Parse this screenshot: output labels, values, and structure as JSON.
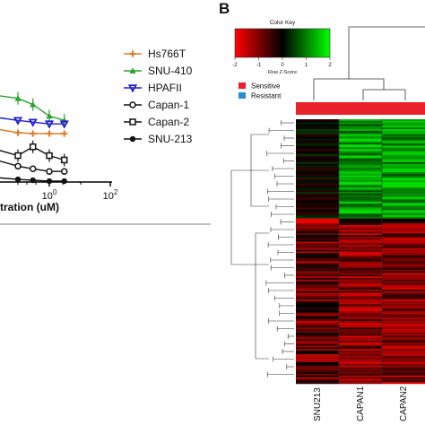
{
  "panel_b_label": "B",
  "chart_data": [
    {
      "type": "line",
      "xlabel": "tration (uM)",
      "xscale": "log",
      "x_tick_labels": [
        "10^0",
        "10^2"
      ],
      "legend_placement": "right",
      "series": [
        {
          "name": "Hs766T",
          "color": "#e07b2a",
          "marker": "plus",
          "x": [
            0.01,
            0.1,
            0.3,
            1,
            3
          ],
          "y": [
            62,
            56,
            55,
            55,
            55
          ]
        },
        {
          "name": "SNU-410",
          "color": "#2ca02c",
          "marker": "triangle-up",
          "x": [
            0.01,
            0.1,
            0.3,
            1,
            3
          ],
          "y": [
            100,
            95,
            88,
            75,
            70
          ]
        },
        {
          "name": "HPAFII",
          "color": "#1f1fd0",
          "marker": "triangle-down",
          "x": [
            0.01,
            0.1,
            0.3,
            1,
            3
          ],
          "y": [
            75,
            70,
            68,
            66,
            66
          ]
        },
        {
          "name": "Capan-1",
          "color": "#111111",
          "marker": "circle-open",
          "x": [
            0.01,
            0.1,
            0.3,
            1,
            3
          ],
          "y": [
            28,
            18,
            15,
            12,
            12
          ]
        },
        {
          "name": "Capan-2",
          "color": "#111111",
          "marker": "square-open",
          "x": [
            0.01,
            0.1,
            0.3,
            1,
            3
          ],
          "y": [
            40,
            30,
            40,
            30,
            25
          ]
        },
        {
          "name": "SNU-213",
          "color": "#111111",
          "marker": "circle-filled",
          "x": [
            0.01,
            0.1,
            0.3,
            1,
            3
          ],
          "y": [
            6,
            3,
            2,
            1,
            1
          ]
        }
      ]
    },
    {
      "type": "heatmap",
      "color_key": {
        "title": "Color Key",
        "label": "Row Z-Score",
        "ticks": [
          "-2",
          "-1",
          "0",
          "1",
          "2"
        ],
        "colors": [
          "#ff0000",
          "#000000",
          "#00ff00"
        ]
      },
      "group_legend": [
        {
          "label": "Sensitive",
          "color": "#e8202a"
        },
        {
          "label": "Resistant",
          "color": "#2d8ccd"
        }
      ],
      "group_bar_color": "#e8202a",
      "columns": [
        "SNU213",
        "CAPAN1",
        "CAPAN2"
      ],
      "n_rows": 160
    }
  ]
}
